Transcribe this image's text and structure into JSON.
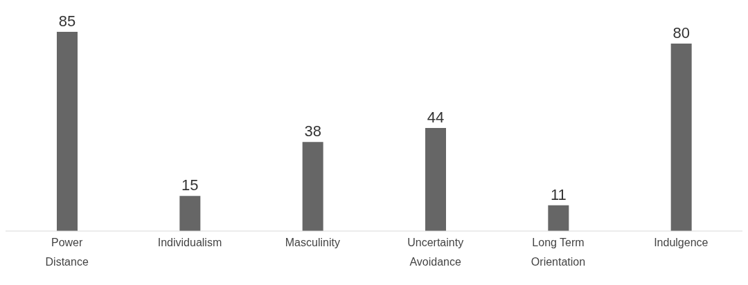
{
  "chart_data": {
    "type": "bar",
    "categories": [
      "Power Distance",
      "Individualism",
      "Masculinity",
      "Uncertainty Avoidance",
      "Long Term Orientation",
      "Indulgence"
    ],
    "values": [
      85,
      15,
      38,
      44,
      11,
      80
    ],
    "color": "#666666",
    "data_labels": true
  }
}
